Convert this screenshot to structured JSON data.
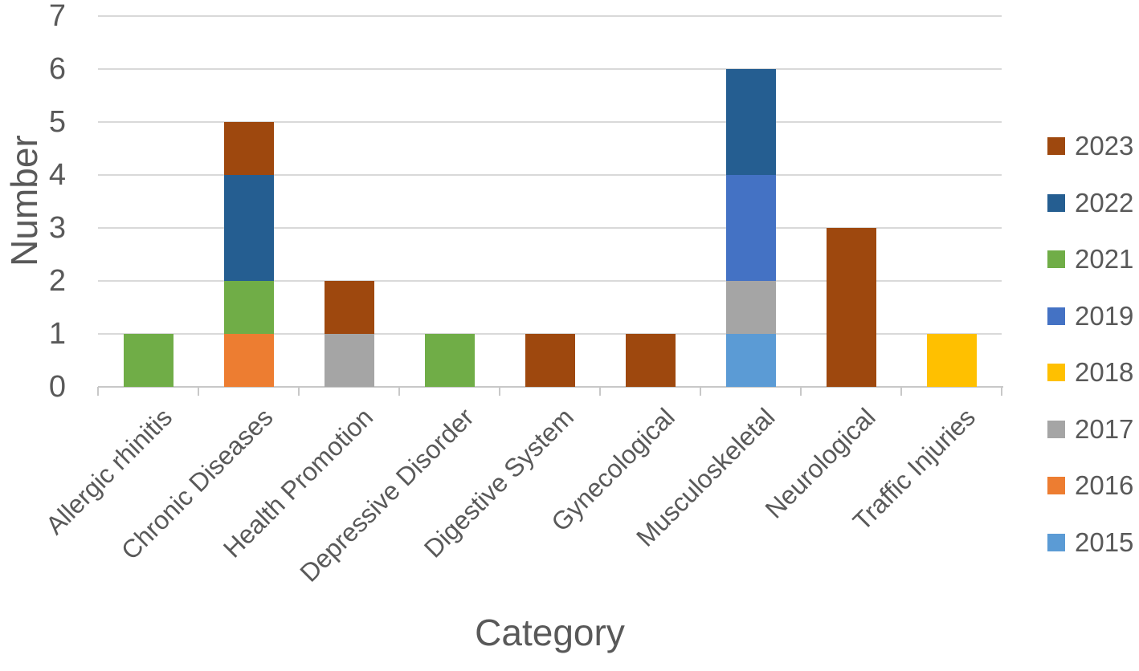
{
  "colors": {
    "text": "#595959",
    "gridline": "#D9D9D9",
    "axis_line": "#C8C8C8",
    "background": "#FFFFFF"
  },
  "chart_data": {
    "type": "bar",
    "stacked": true,
    "title": "",
    "xlabel": "Category",
    "ylabel": "Number",
    "ylim": [
      0,
      7
    ],
    "yticks": [
      0,
      1,
      2,
      3,
      4,
      5,
      6,
      7
    ],
    "grid": true,
    "legend_position": "right",
    "categories": [
      "Allergic rhinitis",
      "Chronic Diseases",
      "Health Promotion",
      "Depressive Disorder",
      "Digestive System",
      "Gynecological",
      "Musculoskeletal",
      "Neurological",
      "Traffic Injuries"
    ],
    "series": [
      {
        "name": "2015",
        "color": "#5B9BD5",
        "values": [
          0,
          0,
          0,
          0,
          0,
          0,
          1,
          0,
          0
        ]
      },
      {
        "name": "2016",
        "color": "#ED7D31",
        "values": [
          0,
          1,
          0,
          0,
          0,
          0,
          0,
          0,
          0
        ]
      },
      {
        "name": "2017",
        "color": "#A5A5A5",
        "values": [
          0,
          0,
          1,
          0,
          0,
          0,
          1,
          0,
          0
        ]
      },
      {
        "name": "2018",
        "color": "#FFC000",
        "values": [
          0,
          0,
          0,
          0,
          0,
          0,
          0,
          0,
          1
        ]
      },
      {
        "name": "2019",
        "color": "#4472C4",
        "values": [
          0,
          0,
          0,
          0,
          0,
          0,
          2,
          0,
          0
        ]
      },
      {
        "name": "2021",
        "color": "#70AD47",
        "values": [
          1,
          1,
          0,
          1,
          0,
          0,
          0,
          0,
          0
        ]
      },
      {
        "name": "2022",
        "color": "#255E91",
        "values": [
          0,
          2,
          0,
          0,
          0,
          0,
          2,
          0,
          0
        ]
      },
      {
        "name": "2023",
        "color": "#9E480E",
        "values": [
          0,
          1,
          1,
          0,
          1,
          1,
          0,
          3,
          0
        ]
      }
    ],
    "category_totals": [
      1,
      5,
      2,
      1,
      1,
      1,
      6,
      3,
      1
    ],
    "legend_order": [
      "2023",
      "2022",
      "2021",
      "2019",
      "2018",
      "2017",
      "2016",
      "2015"
    ]
  }
}
